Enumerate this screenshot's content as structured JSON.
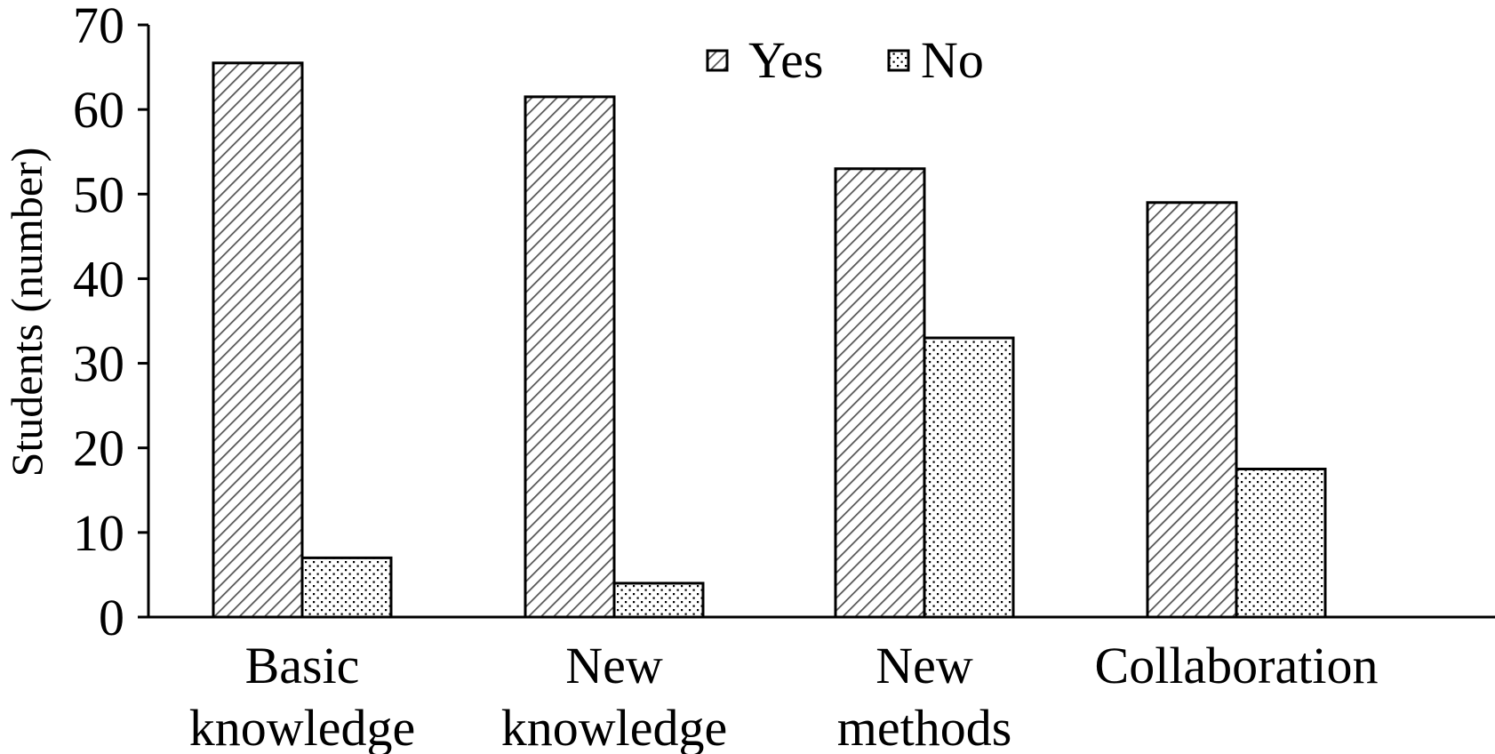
{
  "chart_data": {
    "type": "bar",
    "title": "",
    "xlabel": "",
    "ylabel": "Students (number)",
    "ylim": [
      0,
      70
    ],
    "yticks": [
      0,
      10,
      20,
      30,
      40,
      50,
      60,
      70
    ],
    "categories": [
      [
        "Basic",
        "knowledge"
      ],
      [
        "New",
        "knowledge"
      ],
      [
        "New",
        "methods"
      ],
      [
        "Collaboration"
      ]
    ],
    "series": [
      {
        "name": "Yes",
        "values": [
          65.5,
          61.5,
          53,
          49
        ],
        "pattern": "diagonal-hatch"
      },
      {
        "name": "No",
        "values": [
          7,
          4,
          33,
          17.5
        ],
        "pattern": "dots"
      }
    ],
    "legend": "top-center",
    "grid": false,
    "colors": {
      "axis": "#000000",
      "bar_outline": "#000000",
      "pattern_ink": "#000000",
      "background": "#ffffff"
    }
  }
}
